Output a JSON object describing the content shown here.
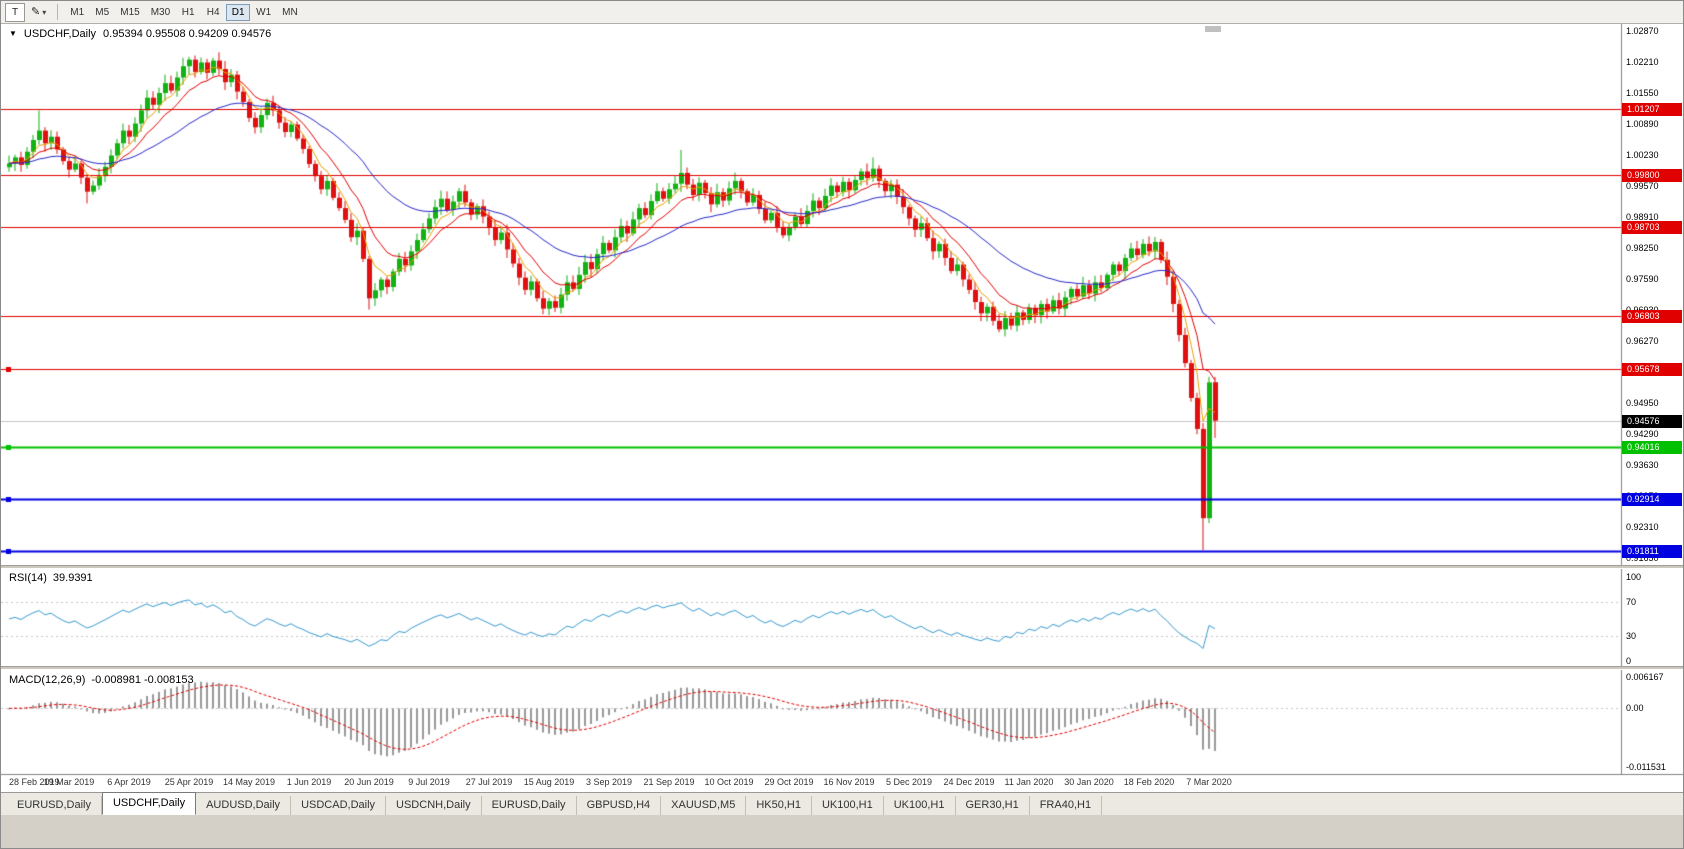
{
  "toolbar": {
    "text_tool_label": "T",
    "timeframes": [
      "M1",
      "M5",
      "M15",
      "M30",
      "H1",
      "H4",
      "D1",
      "W1",
      "MN"
    ],
    "active_timeframe": "D1"
  },
  "chart": {
    "symbol_period": "USDCHF,Daily",
    "ohlc": "0.95394 0.95508 0.94209 0.94576",
    "y_ticks": [
      "1.02870",
      "1.02210",
      "1.01550",
      "1.00890",
      "1.00230",
      "0.99570",
      "0.98910",
      "0.98250",
      "0.97590",
      "0.96930",
      "0.96270",
      "0.95610",
      "0.94950",
      "0.94290",
      "0.93630",
      "0.92970",
      "0.92310",
      "0.91650"
    ],
    "x_labels": [
      "28 Feb 2019",
      "19 Mar 2019",
      "6 Apr 2019",
      "25 Apr 2019",
      "14 May 2019",
      "1 Jun 2019",
      "20 Jun 2019",
      "9 Jul 2019",
      "27 Jul 2019",
      "15 Aug 2019",
      "3 Sep 2019",
      "21 Sep 2019",
      "10 Oct 2019",
      "29 Oct 2019",
      "16 Nov 2019",
      "5 Dec 2019",
      "24 Dec 2019",
      "11 Jan 2020",
      "30 Jan 2020",
      "18 Feb 2020",
      "7 Mar 2020"
    ],
    "hlines": [
      {
        "price": 1.01207,
        "label": "1.01207",
        "color": "#e00000",
        "width": 1,
        "anchor": false
      },
      {
        "price": 0.998,
        "label": "0.99800",
        "color": "#e00000",
        "width": 1,
        "anchor": false
      },
      {
        "price": 0.98703,
        "label": "0.98703",
        "color": "#e00000",
        "width": 1,
        "anchor": false
      },
      {
        "price": 0.96803,
        "label": "0.96803",
        "color": "#e00000",
        "width": 1,
        "anchor": false
      },
      {
        "price": 0.95678,
        "label": "0.95678",
        "color": "#e00000",
        "width": 1,
        "anchor": true
      },
      {
        "price": 0.94016,
        "label": "0.94016",
        "color": "#00c000",
        "width": 2,
        "anchor": true
      },
      {
        "price": 0.92914,
        "label": "0.92914",
        "color": "#0000e0",
        "width": 2,
        "anchor": true
      },
      {
        "price": 0.91811,
        "label": "0.91811",
        "color": "#0000e0",
        "width": 2,
        "anchor": true
      }
    ],
    "current_price": {
      "price": 0.94576,
      "label": "0.94576",
      "color": "#000000"
    }
  },
  "rsi": {
    "label": "RSI(14)",
    "value": "39.9391",
    "period": 14,
    "color": "#3a9ad0",
    "levels": [
      {
        "v": 100,
        "label": "100"
      },
      {
        "v": 70,
        "label": "70"
      },
      {
        "v": 30,
        "label": "30"
      },
      {
        "v": 0,
        "label": "0"
      }
    ]
  },
  "macd": {
    "label": "MACD(12,26,9)",
    "values": "-0.008981 -0.008153",
    "fast": 12,
    "slow": 26,
    "signal": 9,
    "histogram_color": "#9a9a9a",
    "signal_color": "#e00000",
    "axis": [
      {
        "v": 0.006167,
        "label": "0.006167"
      },
      {
        "v": 0,
        "label": "0.00"
      },
      {
        "v": -0.011531,
        "label": "-0.011531"
      }
    ]
  },
  "tabs": [
    {
      "label": "EURUSD,Daily",
      "active": false
    },
    {
      "label": "USDCHF,Daily",
      "active": true
    },
    {
      "label": "AUDUSD,Daily",
      "active": false
    },
    {
      "label": "USDCAD,Daily",
      "active": false
    },
    {
      "label": "USDCNH,Daily",
      "active": false
    },
    {
      "label": "EURUSD,Daily",
      "active": false
    },
    {
      "label": "GBPUSD,H4",
      "active": false
    },
    {
      "label": "XAUUSD,M5",
      "active": false
    },
    {
      "label": "HK50,H1",
      "active": false
    },
    {
      "label": "UK100,H1",
      "active": false
    },
    {
      "label": "UK100,H1",
      "active": false
    },
    {
      "label": "GER30,H1",
      "active": false
    },
    {
      "label": "FRA40,H1",
      "active": false
    }
  ],
  "chart_data": {
    "type": "candlestick",
    "symbol": "USDCHF",
    "timeframe": "Daily",
    "ylim": [
      0.9161,
      1.0287
    ],
    "candles_per_date_label": 10,
    "up_color": "#12b212",
    "down_color": "#e01010",
    "moving_averages": [
      {
        "period": 5,
        "color": "#e8a000"
      },
      {
        "period": 10,
        "color": "#e00000"
      },
      {
        "period": 30,
        "color": "#2828c8"
      }
    ],
    "closes": [
      1.0005,
      1.0018,
      1.0002,
      1.003,
      1.0055,
      1.0075,
      1.0048,
      1.0062,
      1.0035,
      1.001,
      0.9992,
      1.0005,
      0.9975,
      0.9945,
      0.9958,
      0.9978,
      0.9998,
      1.0022,
      1.0048,
      1.0075,
      1.0062,
      1.009,
      1.0118,
      1.0145,
      1.013,
      1.0155,
      1.0176,
      1.016,
      1.0188,
      1.0212,
      1.0226,
      1.02,
      1.022,
      1.0198,
      1.0224,
      1.0206,
      1.0178,
      1.0194,
      1.0158,
      1.0136,
      1.0102,
      1.0082,
      1.0108,
      1.0134,
      1.0118,
      1.0092,
      1.0072,
      1.0088,
      1.0058,
      1.0036,
      1.0004,
      0.9978,
      0.995,
      0.9968,
      0.9932,
      0.991,
      0.9885,
      0.9848,
      0.9862,
      0.9802,
      0.9718,
      0.9735,
      0.9758,
      0.9742,
      0.9775,
      0.9802,
      0.9788,
      0.9818,
      0.9842,
      0.9865,
      0.9888,
      0.9912,
      0.993,
      0.9906,
      0.9924,
      0.9946,
      0.9922,
      0.9896,
      0.9914,
      0.9892,
      0.9868,
      0.9842,
      0.9858,
      0.9822,
      0.9792,
      0.9762,
      0.9736,
      0.9754,
      0.9718,
      0.9696,
      0.9712,
      0.9698,
      0.9726,
      0.9752,
      0.9738,
      0.9768,
      0.9795,
      0.978,
      0.9812,
      0.9836,
      0.982,
      0.9848,
      0.9872,
      0.9856,
      0.9886,
      0.991,
      0.9895,
      0.9925,
      0.9946,
      0.993,
      0.995,
      0.9962,
      0.9985,
      0.996,
      0.9938,
      0.9964,
      0.9942,
      0.9918,
      0.9944,
      0.9926,
      0.9952,
      0.9968,
      0.9946,
      0.9922,
      0.9938,
      0.9908,
      0.9884,
      0.99,
      0.987,
      0.9852,
      0.987,
      0.9892,
      0.9876,
      0.9904,
      0.9926,
      0.991,
      0.9936,
      0.9958,
      0.9944,
      0.9966,
      0.9948,
      0.997,
      0.9988,
      0.9974,
      0.9994,
      0.9968,
      0.9946,
      0.996,
      0.9934,
      0.9912,
      0.9888,
      0.9864,
      0.9878,
      0.9846,
      0.9818,
      0.9834,
      0.9804,
      0.9776,
      0.979,
      0.9758,
      0.9736,
      0.971,
      0.9686,
      0.97,
      0.967,
      0.9652,
      0.9676,
      0.966,
      0.9688,
      0.9672,
      0.9698,
      0.9682,
      0.9706,
      0.969,
      0.9714,
      0.9696,
      0.972,
      0.9738,
      0.9722,
      0.9746,
      0.9728,
      0.9752,
      0.974,
      0.9768,
      0.979,
      0.9776,
      0.9804,
      0.9824,
      0.981,
      0.9834,
      0.9818,
      0.9838,
      0.98,
      0.9764,
      0.9706,
      0.964,
      0.958,
      0.9506,
      0.944,
      0.925,
      0.9539,
      0.94576
    ],
    "overrides": {
      "5": {
        "h": 1.0118
      },
      "13": {
        "l": 0.992
      },
      "30": {
        "h": 1.0232
      },
      "34": {
        "h": 1.023
      },
      "60": {
        "l": 0.9694
      },
      "89": {
        "l": 0.9684
      },
      "91": {
        "l": 0.9689
      },
      "112": {
        "h": 1.0034
      },
      "144": {
        "h": 1.0018
      },
      "165": {
        "l": 0.9646
      },
      "199": {
        "l": 0.9182
      },
      "200": {
        "h": 0.9551
      },
      "201": {
        "o": 0.95394,
        "h": 0.95508,
        "l": 0.94209
      }
    }
  }
}
